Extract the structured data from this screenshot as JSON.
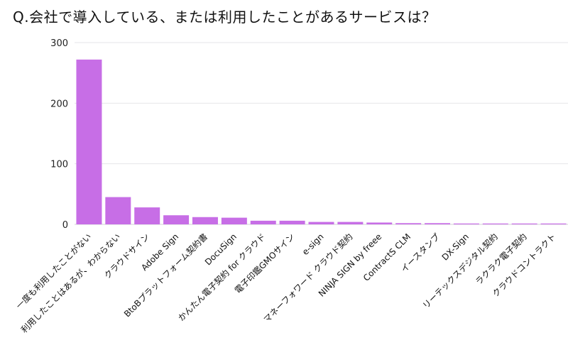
{
  "chart_data": {
    "type": "bar",
    "title": "Q.会社で導入している、または利用したことがあるサービスは？",
    "xlabel": "",
    "ylabel": "",
    "ylim": [
      0,
      300
    ],
    "yticks": [
      0,
      100,
      200,
      300
    ],
    "grid": true,
    "bar_color": "#c76ee6",
    "categories": [
      "一度も利用したことがない",
      "利用したことはあるが、わからない",
      "クラウドサイン",
      "Adobe Sign",
      "BtoBプラットフォーム契約書",
      "DocuSign",
      "かんたん電子契約 for クラウド",
      "電子印鑑GMOサイン",
      "e-sign",
      "マネーフォワード クラウド契約",
      "NINJA SIGN by freee",
      "ContractS CLM",
      "イースタンプ",
      "DX-Sign",
      "リーテックスデジタル契約",
      "ラクラク電子契約",
      "クラウドコントラクト"
    ],
    "values": [
      272,
      45,
      28,
      15,
      12,
      11,
      6,
      6,
      4,
      4,
      3,
      2,
      2,
      1,
      1,
      1,
      1
    ]
  }
}
